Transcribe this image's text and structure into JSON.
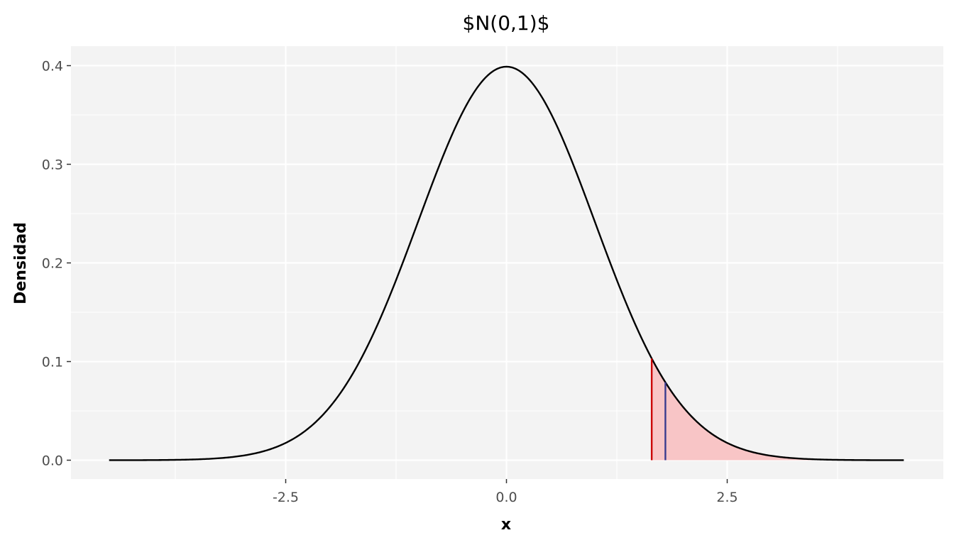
{
  "chart_data": {
    "type": "area",
    "title": "$N(0,1)$",
    "xlabel": "x",
    "ylabel": "Densidad",
    "xlim": [
      -4.5,
      4.5
    ],
    "ylim": [
      0,
      0.4
    ],
    "x_ticks": [
      -2.5,
      0.0,
      2.5
    ],
    "x_tick_labels": [
      "-2.5",
      "0.0",
      "2.5"
    ],
    "y_ticks": [
      0.0,
      0.1,
      0.2,
      0.3,
      0.4
    ],
    "y_tick_labels": [
      "0.0",
      "0.1",
      "0.2",
      "0.3",
      "0.4"
    ],
    "grid": true,
    "legend": "none",
    "series": [
      {
        "function": "standard normal density",
        "mean": 0,
        "sd": 1,
        "x_from": -4.5,
        "x_to": 4.5,
        "color": "#000000"
      }
    ],
    "shaded_region": {
      "x_from": 1.645,
      "x_to": 4.5,
      "color": "#f8c5c6"
    },
    "vertical_lines": [
      {
        "x": 1.645,
        "color": "#cc0000"
      },
      {
        "x": 1.8,
        "color": "#3b3b8f"
      }
    ],
    "colors": {
      "panel_background": "#f3f3f3",
      "grid": "#ffffff",
      "curve": "#000000"
    }
  }
}
